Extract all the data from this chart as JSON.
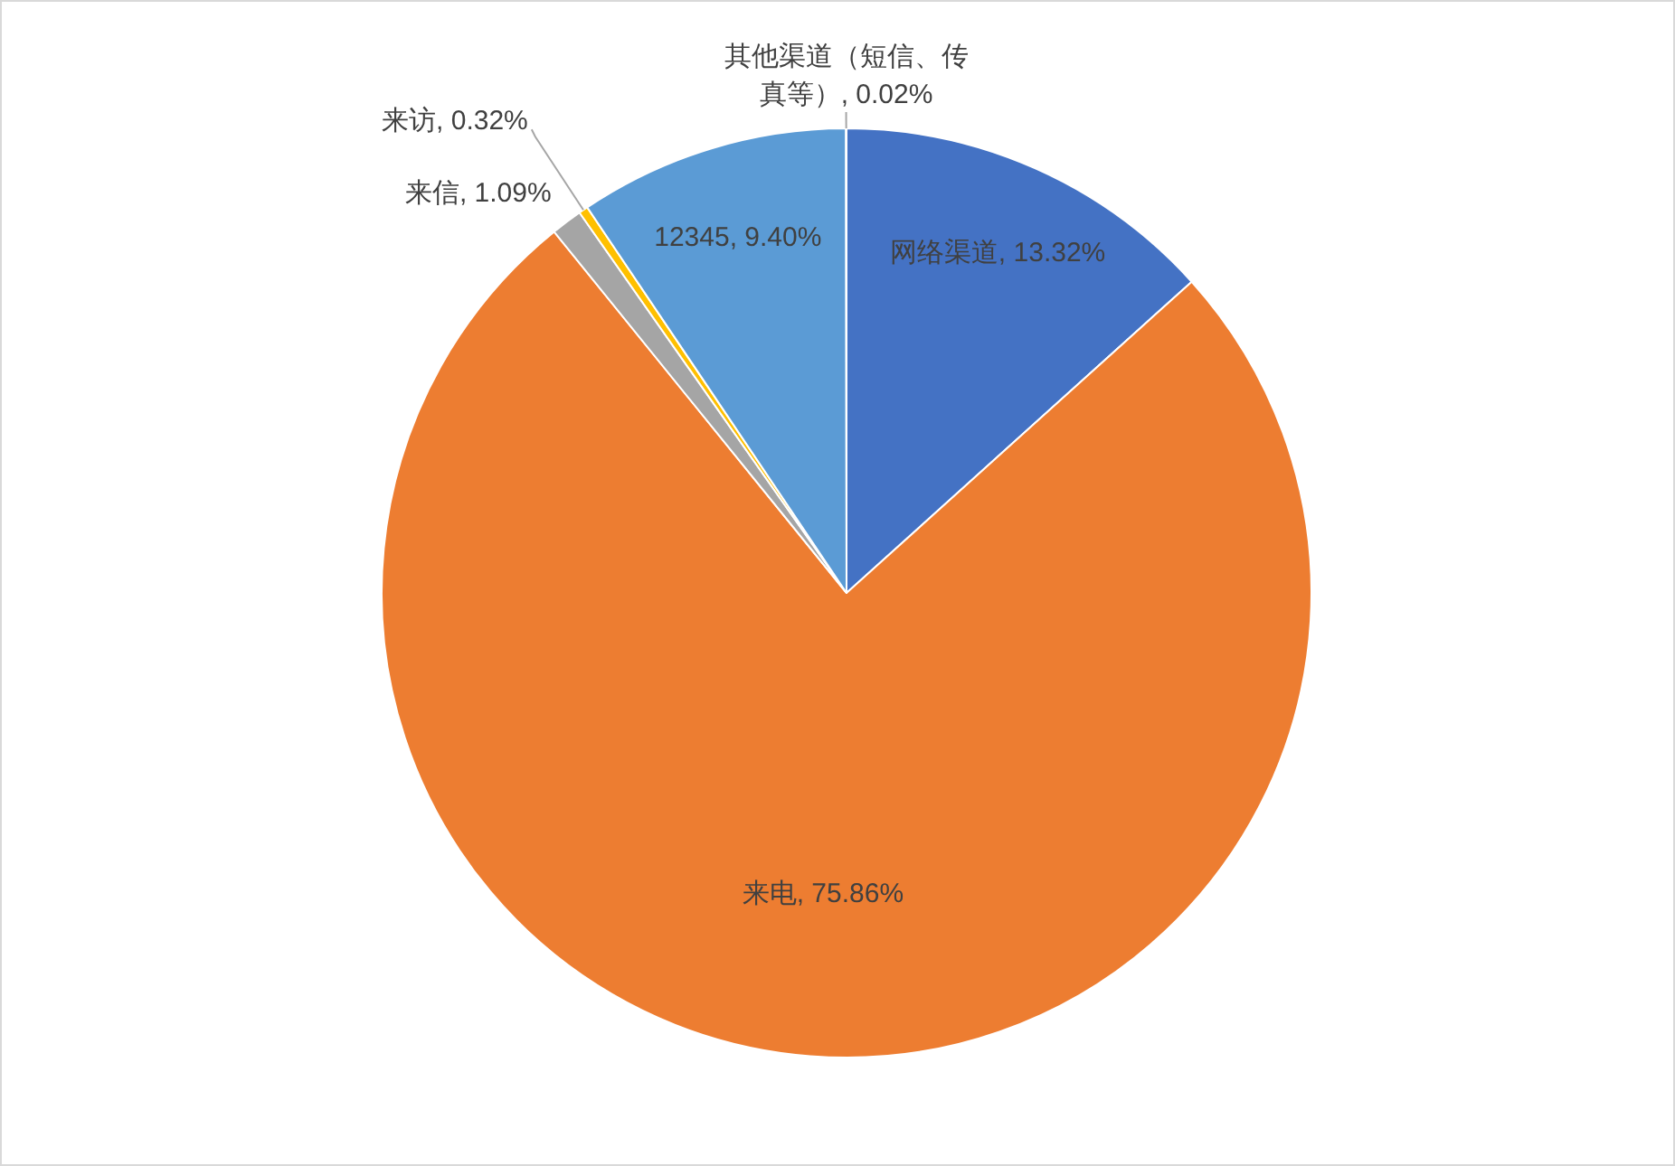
{
  "chart_data": {
    "type": "pie",
    "categories": [
      "网络渠道",
      "来电",
      "来信",
      "来访",
      "12345",
      "其他渠道（短信、传真等）"
    ],
    "values": [
      13.32,
      75.86,
      1.09,
      0.32,
      9.4,
      0.02
    ],
    "value_labels": [
      ", 13.32%",
      ", 75.86%",
      ", 1.09%",
      ", 0.32%",
      ", 9.40%",
      ", 0.02%"
    ],
    "colors": [
      "#4472c4",
      "#ed7d31",
      "#a5a5a5",
      "#ffc000",
      "#5b9bd5",
      "#70ad47"
    ],
    "legend": false
  }
}
